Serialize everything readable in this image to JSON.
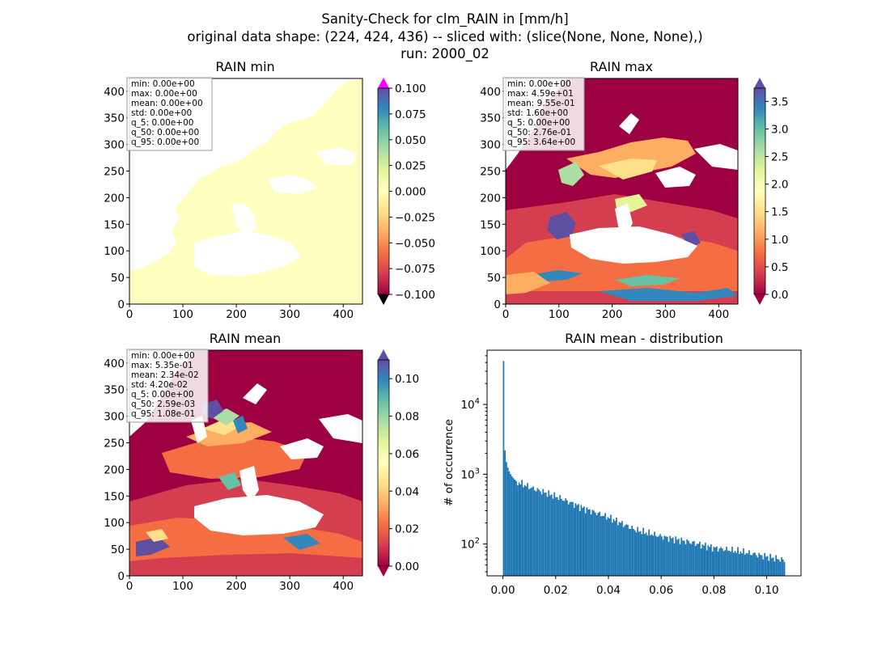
{
  "figure": {
    "title_lines": [
      "Sanity-Check for clm_RAIN in [mm/h]",
      "original data shape: (224, 424, 436) -- sliced with: (slice(None, None, None),)",
      "run: 2000_02"
    ]
  },
  "panels": [
    {
      "id": "min",
      "title": "RAIN min",
      "type": "heatmap",
      "x_ticks": [
        "0",
        "100",
        "200",
        "300",
        "400"
      ],
      "y_ticks": [
        "0",
        "50",
        "100",
        "150",
        "200",
        "250",
        "300",
        "350",
        "400"
      ],
      "stats": [
        "min: 0.00e+00",
        "max: 0.00e+00",
        "mean: 0.00e+00",
        "std: 0.00e+00",
        "q_5: 0.00e+00",
        "q_50: 0.00e+00",
        "q_95: 0.00e+00"
      ],
      "colorbar": {
        "ticks": [
          "0.100",
          "0.075",
          "0.050",
          "0.025",
          "0.000",
          "−0.025",
          "−0.050",
          "−0.075",
          "−0.100"
        ],
        "extend_top_color": "#ff00ff",
        "extend_bottom_color": "#000000"
      }
    },
    {
      "id": "max",
      "title": "RAIN max",
      "type": "heatmap",
      "x_ticks": [
        "0",
        "100",
        "200",
        "300",
        "400"
      ],
      "y_ticks": [
        "0",
        "50",
        "100",
        "150",
        "200",
        "250",
        "300",
        "350",
        "400"
      ],
      "stats": [
        "min: 0.00e+00",
        "max: 4.59e+01",
        "mean: 9.55e-01",
        "std: 1.60e+00",
        "q_5: 0.00e+00",
        "q_50: 2.76e-01",
        "q_95: 3.64e+00"
      ],
      "colorbar": {
        "ticks": [
          "3.5",
          "3.0",
          "2.5",
          "2.0",
          "1.5",
          "1.0",
          "0.5",
          "0.0"
        ],
        "extend_top_color": "#5e4fa2",
        "extend_bottom_color": "#9e0142"
      }
    },
    {
      "id": "mean",
      "title": "RAIN mean",
      "type": "heatmap",
      "x_ticks": [
        "0",
        "100",
        "200",
        "300",
        "400"
      ],
      "y_ticks": [
        "0",
        "50",
        "100",
        "150",
        "200",
        "250",
        "300",
        "350",
        "400"
      ],
      "stats": [
        "min: 0.00e+00",
        "max: 5.35e-01",
        "mean: 2.34e-02",
        "std: 4.20e-02",
        "q_5: 0.00e+00",
        "q_50: 2.59e-03",
        "q_95: 1.08e-01"
      ],
      "colorbar": {
        "ticks": [
          "0.10",
          "0.08",
          "0.06",
          "0.04",
          "0.02",
          "0.00"
        ],
        "extend_top_color": "#5e4fa2",
        "extend_bottom_color": "#9e0142"
      }
    }
  ],
  "colors": {
    "spectral_stops": [
      "#9e0142",
      "#d53e4f",
      "#f46d43",
      "#fdae61",
      "#fee08b",
      "#ffffbf",
      "#e6f598",
      "#abdda4",
      "#66c2a5",
      "#3288bd",
      "#5e4fa2"
    ],
    "min_field": "#ffffbf",
    "histogram_bar": "#1f77b4"
  },
  "chart_data": [
    {
      "type": "bar",
      "title": "RAIN mean - distribution",
      "xlabel": "",
      "ylabel": "# of occurrence",
      "yscale": "log",
      "xlim": [
        -0.006,
        0.113
      ],
      "ylim": [
        35,
        60000
      ],
      "x_ticks": [
        "0.00",
        "0.02",
        "0.04",
        "0.06",
        "0.08",
        "0.10"
      ],
      "y_ticks": [
        "10^2",
        "10^3",
        "10^4"
      ],
      "bin_width": 0.000535,
      "bin_start": 0.0,
      "head_counts": [
        42000,
        2200,
        1500,
        1250,
        1100,
        1000,
        930,
        880,
        840,
        800
      ],
      "counts_at": [
        {
          "x": 0.006,
          "y": 760
        },
        {
          "x": 0.01,
          "y": 650
        },
        {
          "x": 0.02,
          "y": 480
        },
        {
          "x": 0.03,
          "y": 330
        },
        {
          "x": 0.04,
          "y": 240
        },
        {
          "x": 0.05,
          "y": 160
        },
        {
          "x": 0.06,
          "y": 128
        },
        {
          "x": 0.07,
          "y": 108
        },
        {
          "x": 0.08,
          "y": 88
        },
        {
          "x": 0.09,
          "y": 78
        },
        {
          "x": 0.1,
          "y": 66
        },
        {
          "x": 0.107,
          "y": 58
        }
      ],
      "x_end": 0.107
    }
  ]
}
